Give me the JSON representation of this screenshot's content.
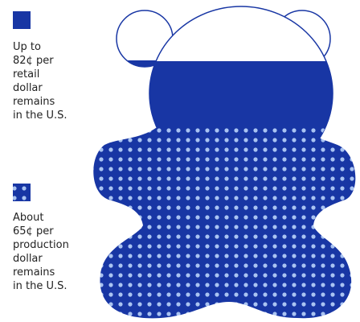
{
  "legend": [
    {
      "lines": [
        "Up to",
        "82¢ per",
        "retail",
        "dollar",
        "remains",
        "in the U.S."
      ]
    },
    {
      "lines": [
        "About",
        "65¢ per",
        "production",
        "dollar",
        "remains",
        "in the U.S."
      ]
    }
  ]
}
